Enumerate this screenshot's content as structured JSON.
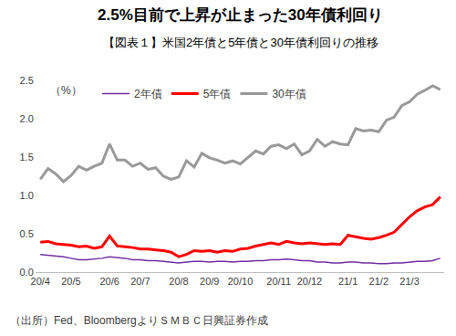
{
  "chart_data": {
    "type": "line",
    "title": "2.5%目前で上昇が止まった30年債利回り",
    "subtitle": "【図表１】米国2年債と5年債と30年債利回りの推移",
    "ylabel": "（%）",
    "source": "（出所）Fed、BloombergよりＳＭＢＣ日興証券作成",
    "categories": [
      "20/4",
      null,
      null,
      null,
      "20/5",
      null,
      null,
      null,
      null,
      "20/6",
      null,
      null,
      null,
      "20/7",
      null,
      null,
      null,
      null,
      "20/8",
      null,
      null,
      null,
      "20/9",
      null,
      null,
      null,
      "20/10",
      null,
      null,
      null,
      null,
      "20/11",
      null,
      null,
      null,
      "20/12",
      null,
      null,
      null,
      null,
      "21/1",
      null,
      null,
      null,
      "21/2",
      null,
      null,
      null,
      "21/3",
      null,
      null,
      null,
      null
    ],
    "series": [
      {
        "name": "2年債",
        "color": "#7030a0",
        "line_style": "solid",
        "values": [
          0.23,
          0.22,
          0.21,
          0.2,
          0.18,
          0.16,
          0.16,
          0.17,
          0.18,
          0.2,
          0.19,
          0.18,
          0.16,
          0.16,
          0.15,
          0.15,
          0.14,
          0.13,
          0.12,
          0.13,
          0.14,
          0.14,
          0.13,
          0.14,
          0.14,
          0.13,
          0.14,
          0.14,
          0.15,
          0.15,
          0.16,
          0.16,
          0.17,
          0.16,
          0.15,
          0.15,
          0.13,
          0.13,
          0.12,
          0.12,
          0.13,
          0.13,
          0.12,
          0.12,
          0.11,
          0.11,
          0.12,
          0.12,
          0.13,
          0.14,
          0.14,
          0.15,
          0.18
        ]
      },
      {
        "name": "5年債",
        "color": "#ff0000",
        "line_style": "solid",
        "values": [
          0.39,
          0.4,
          0.37,
          0.36,
          0.35,
          0.33,
          0.34,
          0.31,
          0.33,
          0.47,
          0.34,
          0.33,
          0.32,
          0.3,
          0.3,
          0.29,
          0.28,
          0.26,
          0.2,
          0.23,
          0.28,
          0.27,
          0.28,
          0.26,
          0.28,
          0.27,
          0.3,
          0.31,
          0.34,
          0.36,
          0.38,
          0.36,
          0.4,
          0.38,
          0.37,
          0.38,
          0.37,
          0.36,
          0.37,
          0.36,
          0.48,
          0.46,
          0.44,
          0.43,
          0.45,
          0.48,
          0.52,
          0.62,
          0.72,
          0.8,
          0.85,
          0.88,
          0.98
        ]
      },
      {
        "name": "30年債",
        "color": "#999999",
        "line_style": "solid",
        "values": [
          1.21,
          1.35,
          1.28,
          1.18,
          1.26,
          1.38,
          1.33,
          1.38,
          1.42,
          1.67,
          1.46,
          1.46,
          1.38,
          1.42,
          1.34,
          1.36,
          1.25,
          1.21,
          1.24,
          1.45,
          1.37,
          1.55,
          1.49,
          1.46,
          1.42,
          1.45,
          1.41,
          1.5,
          1.58,
          1.54,
          1.64,
          1.66,
          1.61,
          1.67,
          1.53,
          1.58,
          1.73,
          1.64,
          1.7,
          1.67,
          1.66,
          1.87,
          1.84,
          1.85,
          1.83,
          1.98,
          2.02,
          2.17,
          2.22,
          2.32,
          2.37,
          2.43,
          2.38
        ]
      }
    ],
    "ylim": [
      0,
      2.5
    ],
    "yticks": [
      {
        "value": 0,
        "label": "0.0"
      },
      0.5,
      {
        "value": 1,
        "label": "1.0"
      },
      1.5,
      {
        "value": 2,
        "label": "2.0"
      },
      2.5
    ],
    "grid": false,
    "legend": "top"
  }
}
